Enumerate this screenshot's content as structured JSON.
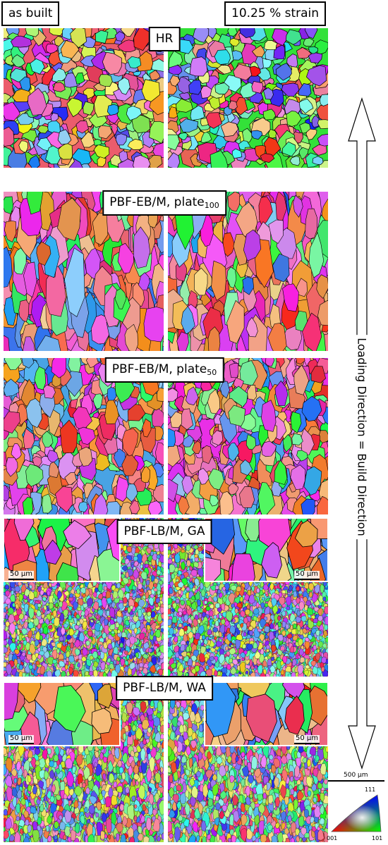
{
  "header": {
    "left": "as built",
    "right": "10.25 % strain"
  },
  "panels": [
    {
      "label": "HR"
    },
    {
      "label": "PBF-EB/M, plate",
      "subscript": "100"
    },
    {
      "label": "PBF-EB/M, plate",
      "subscript": "50"
    },
    {
      "label": "PBF-LB/M, GA",
      "inset_scale_left": "50 µm",
      "inset_scale_right": "50 µm"
    },
    {
      "label": "PBF-LB/M, WA",
      "inset_scale_left": "50 µm",
      "inset_scale_right": "50 µm"
    }
  ],
  "arrow_label": "Loading Direction = Build Direction",
  "scale_bar": "500 µm",
  "ipf_key": {
    "top": "111",
    "left": "001",
    "right": "101"
  }
}
